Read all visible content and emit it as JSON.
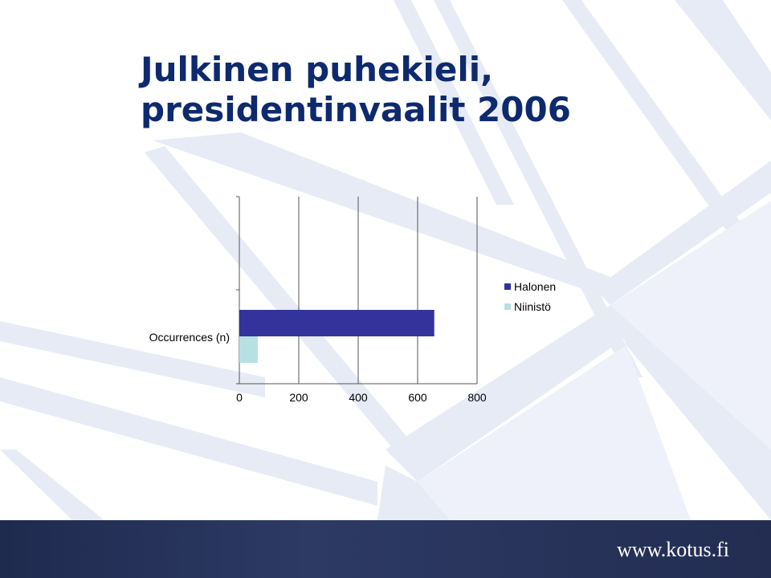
{
  "slide": {
    "title_line1": "Julkinen puhekieli,",
    "title_line2": "presidentinvaalit 2006",
    "footer_url": "www.kotus.fi"
  },
  "colors": {
    "title": "#0e2a6e",
    "halonen": "#33339b",
    "niinisto": "#b7e0e2",
    "footer": "#243056"
  },
  "chart_data": {
    "type": "bar",
    "orientation": "horizontal",
    "categories": [
      "Occurrences (n)"
    ],
    "series": [
      {
        "name": "Halonen",
        "values": [
          656
        ]
      },
      {
        "name": "Niinistö",
        "values": [
          62
        ]
      }
    ],
    "xlim": [
      0,
      800
    ],
    "xticks": [
      "0",
      "200",
      "400",
      "600",
      "800"
    ],
    "grid": true,
    "legend": "right"
  }
}
